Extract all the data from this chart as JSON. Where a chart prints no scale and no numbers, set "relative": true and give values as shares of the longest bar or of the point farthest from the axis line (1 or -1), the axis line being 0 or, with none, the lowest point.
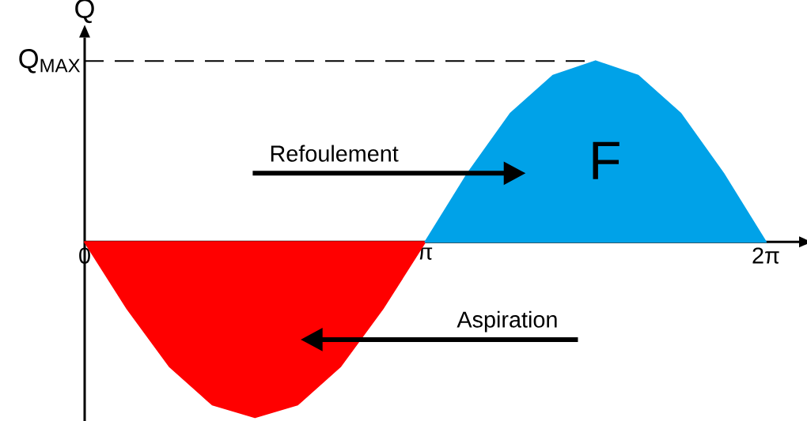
{
  "chart_data": {
    "type": "area",
    "relative": true,
    "ylabel": "Q",
    "xlim": [
      0,
      6.59
    ],
    "xticks": [
      {
        "value": 0,
        "label": "0"
      },
      {
        "value": 3.1416,
        "label": "π"
      },
      {
        "value": 6.2832,
        "label": "2π"
      }
    ],
    "series": [
      {
        "name": "Aspiration",
        "color": "#ff0000",
        "x": [
          0,
          0.3927,
          0.7854,
          1.1781,
          1.5708,
          1.9635,
          2.3562,
          2.7489,
          3.1416
        ],
        "values": [
          0,
          -0.37,
          -0.69,
          -0.9,
          -0.97,
          -0.9,
          -0.69,
          -0.37,
          0
        ]
      },
      {
        "name": "Refoulement",
        "color": "#00a2e8",
        "x": [
          3.1416,
          3.5343,
          3.927,
          4.3197,
          4.7124,
          5.1051,
          5.4978,
          5.8905,
          6.2832
        ],
        "values": [
          0,
          0.38,
          0.71,
          0.92,
          1,
          0.92,
          0.71,
          0.38,
          0
        ]
      }
    ],
    "ref_lines": [
      {
        "axis": "y",
        "value": 1,
        "label": "Q$_{MAX}$",
        "line_style": "dashed"
      }
    ],
    "annotations": [
      "F"
    ]
  }
}
